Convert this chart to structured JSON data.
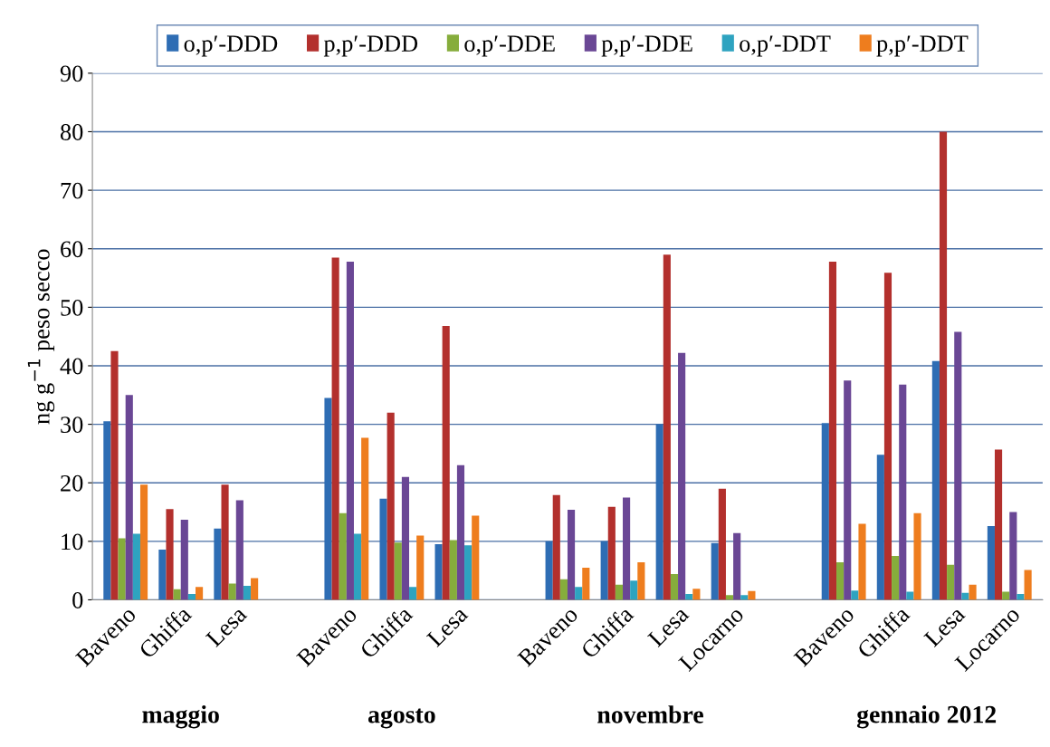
{
  "chart_data": {
    "type": "bar",
    "ylabel": "ng g$^{−1}$ peso secco",
    "categories": [
      "Baveno",
      "Ghiffa",
      "Lesa",
      null,
      "Baveno",
      "Ghiffa",
      "Lesa",
      null,
      "Baveno",
      "Ghiffa",
      "Lesa",
      "Locarno",
      null,
      "Baveno",
      "Ghiffa",
      "Lesa",
      "Locarno"
    ],
    "series": [
      {
        "name": "o,p′-DDD",
        "color": "#2e6db4",
        "values": [
          30.5,
          8.6,
          12.2,
          null,
          34.5,
          17.3,
          9.5,
          null,
          10,
          10,
          30,
          9.7,
          null,
          30.2,
          24.8,
          40.8,
          12.6
        ]
      },
      {
        "name": "p,p′-DDD",
        "color": "#b3302d",
        "values": [
          42.5,
          15.5,
          19.7,
          null,
          58.5,
          32,
          46.8,
          null,
          17.9,
          15.9,
          59,
          19,
          null,
          57.8,
          55.9,
          80,
          25.7
        ]
      },
      {
        "name": "o,p′-DDE",
        "color": "#86ad3c",
        "values": [
          10.5,
          1.8,
          2.8,
          null,
          14.8,
          9.8,
          10.2,
          null,
          3.5,
          2.6,
          4.4,
          0.8,
          null,
          6.4,
          7.5,
          6,
          1.4
        ]
      },
      {
        "name": "p,p′-DDE",
        "color": "#6a4795",
        "values": [
          35,
          13.7,
          17,
          null,
          57.8,
          21,
          23,
          null,
          15.4,
          17.5,
          42.2,
          11.4,
          null,
          37.5,
          36.8,
          45.8,
          15
        ]
      },
      {
        "name": "o,p′-DDT",
        "color": "#2ea3c0",
        "values": [
          11.3,
          1,
          2.4,
          null,
          11.3,
          2.2,
          9.3,
          null,
          2.2,
          3.3,
          1,
          0.8,
          null,
          1.6,
          1.4,
          1.2,
          1
        ]
      },
      {
        "name": "p,p′-DDT",
        "color": "#ee7d1e",
        "values": [
          19.7,
          2.2,
          3.7,
          null,
          27.7,
          11,
          14.4,
          null,
          5.5,
          6.4,
          1.9,
          1.5,
          null,
          13,
          14.8,
          2.6,
          5.1
        ]
      }
    ],
    "ylim": [
      0,
      90
    ],
    "yticks": [
      0,
      10,
      20,
      30,
      40,
      50,
      60,
      70,
      80,
      90
    ],
    "grid": "y",
    "legend": "top",
    "annotations": [
      "maggio",
      "agosto",
      "novembre",
      "gennaio 2012"
    ]
  }
}
